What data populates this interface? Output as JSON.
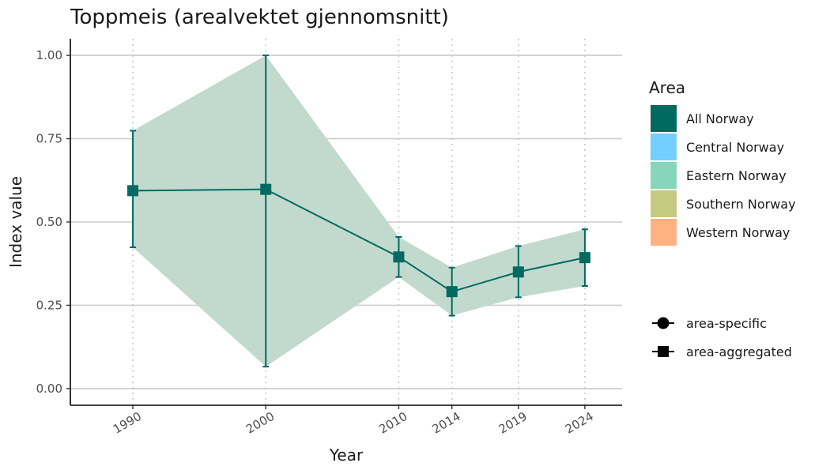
{
  "chart_data": {
    "type": "line",
    "title": "Toppmeis (arealvektet gjennomsnitt)",
    "xlabel": "Year",
    "ylabel": "Index value",
    "xlim": [
      1985.3,
      2026.8
    ],
    "ylim": [
      -0.05,
      1.05
    ],
    "x_ticks": [
      1990,
      2000,
      2010,
      2014,
      2019,
      2024
    ],
    "y_ticks": [
      0.0,
      0.25,
      0.5,
      0.75,
      1.0
    ],
    "y_tick_labels": [
      "0.00",
      "0.25",
      "0.50",
      "0.75",
      "1.00"
    ],
    "grid": {
      "horizontal": true,
      "vertical": "dotted at x ticks"
    },
    "series": [
      {
        "name": "All Norway",
        "color": "#006A60",
        "ribbon_color": "#C2D9CE",
        "marker": "square",
        "x": [
          1990,
          2000,
          2010,
          2014,
          2019,
          2024
        ],
        "y": [
          0.594,
          0.598,
          0.395,
          0.291,
          0.35,
          0.393
        ],
        "lower": [
          0.424,
          0.066,
          0.335,
          0.219,
          0.274,
          0.308
        ],
        "upper": [
          0.774,
          1.0,
          0.455,
          0.363,
          0.428,
          0.478
        ]
      }
    ],
    "legend": {
      "placement": "right",
      "area_title": "Area",
      "areas": [
        {
          "label": "All Norway",
          "color": "#006A60"
        },
        {
          "label": "Central Norway",
          "color": "#72CFFF"
        },
        {
          "label": "Eastern Norway",
          "color": "#85D6BB"
        },
        {
          "label": "Southern Norway",
          "color": "#C4CB80"
        },
        {
          "label": "Western Norway",
          "color": "#FFB182"
        }
      ],
      "shapes": [
        {
          "label": "area-specific",
          "marker": "circle"
        },
        {
          "label": "area-aggregated",
          "marker": "square"
        }
      ]
    }
  }
}
